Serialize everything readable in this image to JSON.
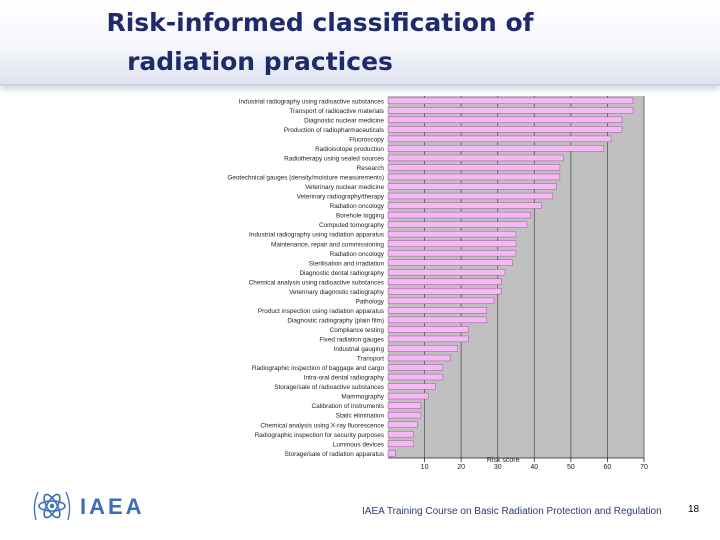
{
  "header": {
    "title_line1": "Risk-informed classification of",
    "title_line2": "radiation practices"
  },
  "footer": {
    "course": "IAEA Training Course on Basic Radiation Protection and Regulation",
    "page": "18",
    "logo_text": "IAEA"
  },
  "colors": {
    "title": "#1f2a6b",
    "bar_fill": "#f4b8f2",
    "bar_stroke": "#9a5a9a",
    "plot_bg": "#c0c0c0",
    "logo": "#3a6fb7"
  },
  "chart_data": {
    "type": "bar",
    "orientation": "horizontal",
    "xlabel": "Risk score",
    "xlim": [
      0,
      70
    ],
    "xticks": [
      10,
      20,
      30,
      40,
      50,
      60,
      70
    ],
    "grid": true,
    "categories": [
      "Industrial radiography using radioactive substances",
      "Transport of radioactive materials",
      "Diagnostic nuclear medicine",
      "Production of radiopharmaceuticals",
      "Fluoroscopy",
      "Radioisotope production",
      "Radiotherapy using sealed sources",
      "Research",
      "Geotechnical gauges (density/moisture measurements)",
      "Veterinary nuclear medicine",
      "Veterinary radiography/therapy",
      "Radiation oncology",
      "Borehole logging",
      "Computed tomography",
      "Industrial radiography using radiation apparatus",
      "Maintenance, repair and commissioning",
      "Radiation oncology",
      "Sterilisation and irradiation",
      "Diagnostic dental radiography",
      "Chemical analysis using radioactive substances",
      "Veterinary diagnostic radiography",
      "Pathology",
      "Product inspection using radiation apparatus",
      "Diagnostic radiography (plain film)",
      "Compliance testing",
      "Fixed radiation gauges",
      "Industrial gauging",
      "Transport",
      "Radiographic inspection of baggage and cargo",
      "Intra-oral dental radiography",
      "Storage/sale of radioactive substances",
      "Mammography",
      "Calibration of instruments",
      "Static elimination",
      "Chemical analysis using X-ray fluorescence",
      "Radiographic inspection for security purposes",
      "Luminous devices",
      "Storage/sale of radiation apparatus"
    ],
    "values": [
      67,
      67,
      64,
      64,
      61,
      59,
      48,
      47,
      47,
      46,
      45,
      42,
      39,
      38,
      35,
      35,
      35,
      34,
      32,
      31,
      31,
      29,
      27,
      27,
      22,
      22,
      19,
      17,
      15,
      15,
      13,
      11,
      9,
      9,
      8,
      7,
      7,
      2
    ]
  }
}
